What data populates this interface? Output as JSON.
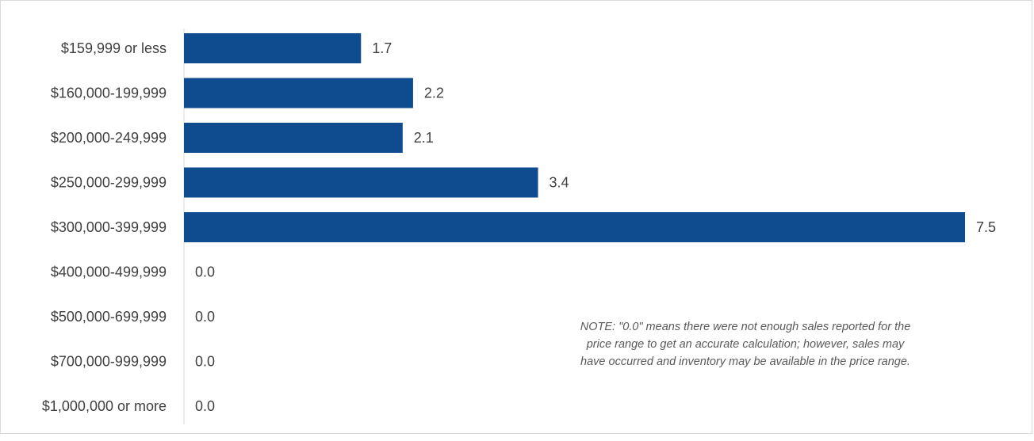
{
  "chart_data": {
    "type": "bar",
    "orientation": "horizontal",
    "categories": [
      "$159,999 or less",
      "$160,000-199,999",
      "$200,000-249,999",
      "$250,000-299,999",
      "$300,000-399,999",
      "$400,000-499,999",
      "$500,000-699,999",
      "$700,000-999,999",
      "$1,000,000 or more"
    ],
    "values": [
      1.7,
      2.2,
      2.1,
      3.4,
      7.5,
      0.0,
      0.0,
      0.0,
      0.0
    ],
    "value_labels": [
      "1.7",
      "2.2",
      "2.1",
      "3.4",
      "7.5",
      "0.0",
      "0.0",
      "0.0",
      "0.0"
    ],
    "bar_color": "#0f4c8f",
    "xlim": [
      0,
      7.5
    ],
    "grid": false,
    "note": {
      "lines": [
        "NOTE: \"0.0\" means there were not enough sales reported for the",
        "price range to get an accurate calculation;  however, sales may",
        "have occurred and inventory may be available in the price range."
      ]
    }
  }
}
